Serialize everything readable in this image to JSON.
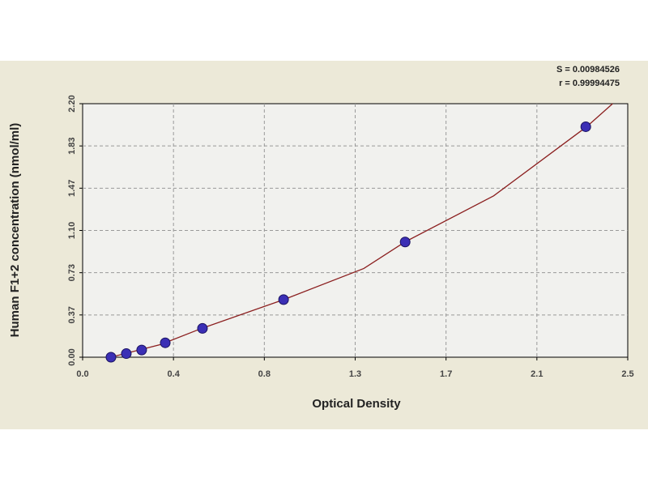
{
  "chart_data": {
    "type": "scatter",
    "x_label": "Optical Density",
    "y_label": "Human F1+2 concentration (nmol/ml)",
    "annotations": [
      "S = 0.00984526",
      "r = 0.99994475"
    ],
    "x": [
      0.131,
      0.202,
      0.273,
      0.382,
      0.554,
      0.929,
      1.491,
      2.326
    ],
    "series": [
      {
        "color": "#3b2fb5",
        "values": [
          0,
          0.03125,
          0.0625,
          0.125,
          0.25,
          0.5,
          1,
          2
        ]
      }
    ],
    "fit": {
      "color": "#8b1f1f",
      "x": [
        0.13,
        0.36,
        0.55,
        0.93,
        1.3,
        1.49,
        1.9,
        2.33,
        2.45
      ],
      "values": [
        0,
        0.11,
        0.25,
        0.5,
        0.77,
        1.0,
        1.4,
        2.0,
        2.2
      ]
    },
    "xlim": [
      0,
      2.52
    ],
    "ylim": [
      0,
      2.2
    ],
    "xticks": [
      {
        "value": 0,
        "label": "0.0"
      },
      {
        "value": 0.42,
        "label": "0.4"
      },
      {
        "value": 0.84,
        "label": "0.8"
      },
      {
        "value": 1.26,
        "label": "1.3"
      },
      {
        "value": 1.68,
        "label": "1.7"
      },
      {
        "value": 2.1,
        "label": "2.1"
      },
      {
        "value": 2.52,
        "label": "2.5"
      }
    ],
    "yticks": [
      {
        "value": 0,
        "label": "0.00"
      },
      {
        "value": 0.3667,
        "label": "0.37"
      },
      {
        "value": 0.7333,
        "label": "0.73"
      },
      {
        "value": 1.1,
        "label": "1.10"
      },
      {
        "value": 1.4667,
        "label": "1.47"
      },
      {
        "value": 1.8333,
        "label": "1.83"
      },
      {
        "value": 2.2,
        "label": "2.20"
      }
    ],
    "grid": true
  }
}
